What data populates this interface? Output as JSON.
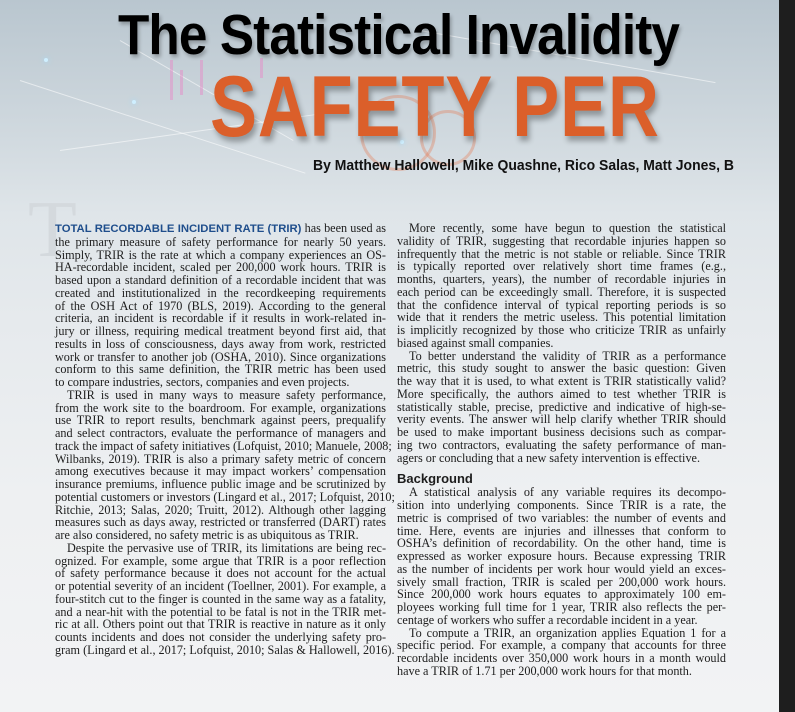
{
  "header": {
    "title": "The Statistical Invalidity",
    "subtitle": "SAFETY PER",
    "byline": "By Matthew Hallowell, Mike Quashne, Rico Salas, Matt Jones, B",
    "drop_cap": "T",
    "accent_color": "#db5f2a",
    "lead_color": "#1f4e8c"
  },
  "left_column": {
    "lead_in": "TOTAL RECORDABLE INCIDENT RATE (TRIR)",
    "paragraphs": [
      [
        " has been used as",
        "the primary measure of safety performance for nearly 50 years.",
        "Simply, TRIR is the rate at which a company experiences an OS-",
        "HA-recordable incident, scaled per 200,000 work hours. TRIR is",
        "based upon a standard definition of a recordable incident that was",
        "created and institutionalized in the recordkeeping requirements",
        "of the OSH Act of 1970 (BLS, 2019). According to the general",
        "criteria, an incident is recordable if it results in work-related in-",
        "jury or illness, requiring medical treatment beyond first aid, that",
        "results in loss of consciousness, days away from work, restricted",
        "work or transfer to another job (OSHA, 2010). Since organizations",
        "conform to this same definition, the TRIR metric has been used",
        "to compare industries, sectors, companies and even projects."
      ],
      [
        "TRIR is used in many ways to measure safety performance,",
        "from the work site to the boardroom. For example, organizations",
        "use TRIR to report results, benchmark against peers, prequalify",
        "and select contractors, evaluate the performance of managers and",
        "track the impact of safety initiatives (Lofquist, 2010; Manuele, 2008;",
        "Wilbanks, 2019). TRIR is also a primary safety metric of concern",
        "among executives because it may impact workers’ compensation",
        "insurance premiums, influence public image and be scrutinized by",
        "potential customers or investors (Lingard et al., 2017; Lofquist, 2010;",
        "Ritchie, 2013; Salas, 2020; Truitt, 2012). Although other lagging",
        "measures such as days away, restricted or transferred (DART) rates",
        "are also considered, no safety metric is as ubiquitous as TRIR."
      ],
      [
        "Despite the pervasive use of TRIR, its limitations are being rec-",
        "ognized. For example, some argue that TRIR is a poor reflection",
        "of safety performance because it does not account for the actual",
        "or potential severity of an incident (Toellner, 2001). For example, a",
        "four-stitch cut to the finger is counted in the same way as a fatality,",
        "and a near-hit with the potential to be fatal is not in the TRIR met-",
        "ric at all. Others point out that TRIR is reactive in nature as it only",
        "counts incidents and does not consider the underlying safety pro-",
        "gram (Lingard et al., 2017; Lofquist, 2010; Salas & Hallowell, 2016)."
      ]
    ]
  },
  "right_column": {
    "paragraphs_before": [
      [
        "More recently, some have begun to question the statistical",
        "validity of TRIR, suggesting that recordable injuries happen so",
        "infrequently that the metric is not stable or reliable. Since TRIR",
        "is typically reported over relatively short time frames (e.g.,",
        "months, quarters, years), the number of recordable injuries in",
        "each period can be exceedingly small. Therefore, it is suspected",
        "that the confidence interval of typical reporting periods is so",
        "wide that it renders the metric useless. This potential limitation",
        "is implicitly recognized by those who criticize TRIR as unfairly",
        "biased against small companies."
      ],
      [
        "To better understand the validity of TRIR as a performance",
        "metric, this study sought to answer the basic question: Given",
        "the way that it is used, to what extent is TRIR statistically valid?",
        "More specifically, the authors aimed to test whether TRIR is",
        "statistically stable, precise, predictive and indicative of high-se-",
        "verity events. The answer will help clarify whether TRIR should",
        "be used to make important business decisions such as compar-",
        "ing two contractors, evaluating the safety performance of man-",
        "agers or concluding that a new safety intervention is effective."
      ]
    ],
    "heading": "Background",
    "paragraphs_after": [
      [
        "A statistical analysis of any variable requires its decompo-",
        "sition into underlying components. Since TRIR is a rate, the",
        "metric is comprised of two variables: the number of events and",
        "time. Here, events are injuries and illnesses that conform to",
        "OSHA’s definition of recordability. On the other hand, time is",
        "expressed as worker exposure hours. Because expressing TRIR",
        "as the number of incidents per work hour would yield an exces-",
        "sively small fraction, TRIR is scaled per 200,000 work hours.",
        "Since 200,000 work hours equates to approximately 100 em-",
        "ployees working full time for 1 year, TRIR also reflects the per-",
        "centage of workers who suffer a recordable incident in a year."
      ],
      [
        "To compute a TRIR, an organization applies Equation 1 for a",
        "specific period. For example, a company that accounts for three",
        "recordable incidents over 350,000 work hours in a month would",
        "have a TRIR of 1.71 per 200,000 work hours for that month."
      ]
    ]
  }
}
